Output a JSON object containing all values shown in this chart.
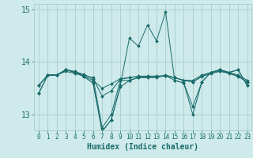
{
  "title": "",
  "xlabel": "Humidex (Indice chaleur)",
  "background_color": "#ceeaea",
  "grid_color": "#aacccc",
  "line_color": "#1a6b6b",
  "xlim": [
    -0.5,
    23.5
  ],
  "ylim": [
    12.7,
    15.1
  ],
  "yticks": [
    13,
    14,
    15
  ],
  "xticks": [
    0,
    1,
    2,
    3,
    4,
    5,
    6,
    7,
    8,
    9,
    10,
    11,
    12,
    13,
    14,
    15,
    16,
    17,
    18,
    19,
    20,
    21,
    22,
    23
  ],
  "series": [
    [
      13.55,
      13.75,
      13.75,
      13.85,
      13.8,
      13.75,
      13.7,
      12.75,
      13.0,
      13.65,
      13.65,
      13.7,
      13.7,
      13.7,
      13.75,
      13.7,
      13.65,
      13.65,
      13.75,
      13.8,
      13.85,
      13.8,
      13.75,
      13.65
    ],
    [
      13.55,
      13.75,
      13.75,
      13.82,
      13.78,
      13.73,
      13.65,
      13.5,
      13.58,
      13.68,
      13.7,
      13.72,
      13.72,
      13.72,
      13.73,
      13.7,
      13.65,
      13.62,
      13.72,
      13.78,
      13.82,
      13.78,
      13.72,
      13.62
    ],
    [
      13.55,
      13.75,
      13.75,
      13.85,
      13.82,
      13.76,
      13.68,
      13.35,
      13.45,
      13.67,
      13.7,
      13.73,
      13.73,
      13.73,
      13.74,
      13.7,
      13.65,
      13.62,
      13.73,
      13.79,
      13.83,
      13.79,
      13.73,
      13.62
    ],
    [
      13.4,
      13.75,
      13.75,
      13.85,
      13.8,
      13.72,
      13.6,
      12.68,
      12.9,
      13.55,
      14.45,
      14.3,
      14.7,
      14.4,
      14.95,
      13.65,
      13.6,
      13.0,
      13.62,
      13.8,
      13.85,
      13.8,
      13.85,
      13.55
    ],
    [
      13.4,
      13.75,
      13.75,
      13.85,
      13.8,
      13.72,
      13.6,
      12.68,
      12.9,
      13.52,
      13.65,
      13.7,
      13.72,
      13.72,
      13.74,
      13.65,
      13.6,
      13.15,
      13.62,
      13.8,
      13.85,
      13.8,
      13.85,
      13.55
    ]
  ]
}
